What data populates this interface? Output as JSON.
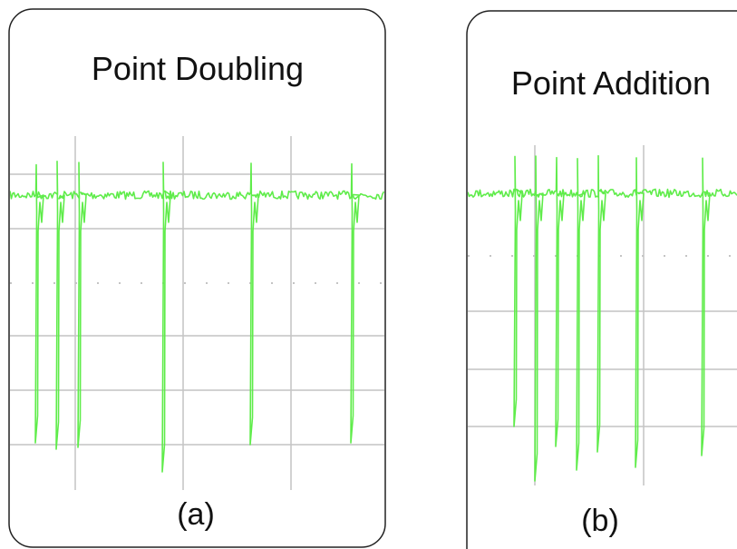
{
  "panels": [
    {
      "title": "Point Doubling",
      "label": "(a)"
    },
    {
      "title": "Point Addition",
      "label": "(b)"
    }
  ]
}
